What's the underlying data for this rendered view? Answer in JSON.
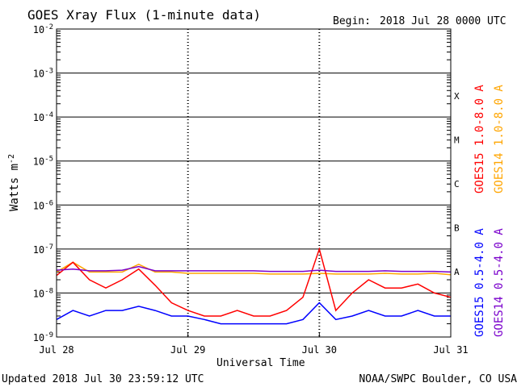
{
  "chart_data": {
    "type": "line",
    "title": "GOES Xray Flux (1-minute data)",
    "begin_label": "Begin:",
    "begin_value": "2018 Jul 28 0000 UTC",
    "ylabel_main": "Watts m",
    "ylabel_exp": "-2",
    "xlabel": "Universal Time",
    "x_ticks": [
      "Jul 28",
      "Jul 29",
      "Jul 30",
      "Jul 31"
    ],
    "y_ticks": [
      {
        "base": "10",
        "exp": "-2",
        "value": 0.01
      },
      {
        "base": "10",
        "exp": "-3",
        "value": 0.001
      },
      {
        "base": "10",
        "exp": "-4",
        "value": 0.0001
      },
      {
        "base": "10",
        "exp": "-5",
        "value": 1e-05
      },
      {
        "base": "10",
        "exp": "-6",
        "value": 1e-06
      },
      {
        "base": "10",
        "exp": "-7",
        "value": 1e-07
      },
      {
        "base": "10",
        "exp": "-8",
        "value": 1e-08
      },
      {
        "base": "10",
        "exp": "-9",
        "value": 1e-09
      }
    ],
    "ylim": [
      1e-09,
      0.01
    ],
    "y_scale": "log",
    "xlim": [
      "2018-07-28 00:00",
      "2018-07-31 00:00"
    ],
    "grid": true,
    "flare_classes": [
      "X",
      "M",
      "C",
      "B",
      "A"
    ],
    "legend_placement": "right, vertical",
    "legend": [
      {
        "label": "GOES15 1.0-8.0 A",
        "color": "#ff0000"
      },
      {
        "label": "GOES14 1.0-8.0 A",
        "color": "#ffa500"
      },
      {
        "label": "GOES15 0.5-4.0 A",
        "color": "#0000ff"
      },
      {
        "label": "GOES14 0.5-4.0 A",
        "color": "#7a00cc"
      }
    ],
    "series": [
      {
        "name": "GOES15 1.0-8.0 A",
        "color": "#ff0000",
        "x": [
          "2018-07-28 00:00",
          "2018-07-28 03:00",
          "2018-07-28 06:00",
          "2018-07-28 09:00",
          "2018-07-28 12:00",
          "2018-07-28 15:00",
          "2018-07-28 18:00",
          "2018-07-28 21:00",
          "2018-07-29 00:00",
          "2018-07-29 03:00",
          "2018-07-29 06:00",
          "2018-07-29 09:00",
          "2018-07-29 12:00",
          "2018-07-29 15:00",
          "2018-07-29 18:00",
          "2018-07-29 21:00",
          "2018-07-30 00:00",
          "2018-07-30 03:00",
          "2018-07-30 06:00",
          "2018-07-30 09:00",
          "2018-07-30 12:00",
          "2018-07-30 15:00",
          "2018-07-30 18:00",
          "2018-07-30 21:00",
          "2018-07-31 00:00"
        ],
        "values": [
          2.5e-08,
          5e-08,
          2e-08,
          1.3e-08,
          2e-08,
          3.5e-08,
          1.5e-08,
          6e-09,
          4e-09,
          3e-09,
          3e-09,
          4e-09,
          3e-09,
          3e-09,
          4e-09,
          8e-09,
          1e-07,
          4e-09,
          1e-08,
          2e-08,
          1.3e-08,
          1.3e-08,
          1.6e-08,
          1e-08,
          8e-09
        ]
      },
      {
        "name": "GOES14 1.0-8.0 A",
        "color": "#ffa500",
        "x": [
          "2018-07-28 00:00",
          "2018-07-28 03:00",
          "2018-07-28 06:00",
          "2018-07-28 09:00",
          "2018-07-28 12:00",
          "2018-07-28 15:00",
          "2018-07-28 18:00",
          "2018-07-28 21:00",
          "2018-07-29 00:00",
          "2018-07-29 03:00",
          "2018-07-29 06:00",
          "2018-07-29 09:00",
          "2018-07-29 12:00",
          "2018-07-29 15:00",
          "2018-07-29 18:00",
          "2018-07-29 21:00",
          "2018-07-30 00:00",
          "2018-07-30 03:00",
          "2018-07-30 06:00",
          "2018-07-30 09:00",
          "2018-07-30 12:00",
          "2018-07-30 15:00",
          "2018-07-30 18:00",
          "2018-07-30 21:00",
          "2018-07-31 00:00"
        ],
        "values": [
          3e-08,
          5e-08,
          3e-08,
          3e-08,
          3e-08,
          4.5e-08,
          3e-08,
          3e-08,
          2.8e-08,
          2.8e-08,
          2.8e-08,
          2.8e-08,
          2.8e-08,
          2.7e-08,
          2.7e-08,
          2.7e-08,
          2.8e-08,
          2.7e-08,
          2.7e-08,
          2.7e-08,
          2.8e-08,
          2.7e-08,
          2.7e-08,
          2.8e-08,
          2.6e-08
        ]
      },
      {
        "name": "GOES15 0.5-4.0 A",
        "color": "#0000ff",
        "x": [
          "2018-07-28 00:00",
          "2018-07-28 03:00",
          "2018-07-28 06:00",
          "2018-07-28 09:00",
          "2018-07-28 12:00",
          "2018-07-28 15:00",
          "2018-07-28 18:00",
          "2018-07-28 21:00",
          "2018-07-29 00:00",
          "2018-07-29 03:00",
          "2018-07-29 06:00",
          "2018-07-29 09:00",
          "2018-07-29 12:00",
          "2018-07-29 15:00",
          "2018-07-29 18:00",
          "2018-07-29 21:00",
          "2018-07-30 00:00",
          "2018-07-30 03:00",
          "2018-07-30 06:00",
          "2018-07-30 09:00",
          "2018-07-30 12:00",
          "2018-07-30 15:00",
          "2018-07-30 18:00",
          "2018-07-30 21:00",
          "2018-07-31 00:00"
        ],
        "values": [
          2.5e-09,
          4e-09,
          3e-09,
          4e-09,
          4e-09,
          5e-09,
          4e-09,
          3e-09,
          3e-09,
          2.5e-09,
          2e-09,
          2e-09,
          2e-09,
          2e-09,
          2e-09,
          2.5e-09,
          6e-09,
          2.5e-09,
          3e-09,
          4e-09,
          3e-09,
          3e-09,
          4e-09,
          3e-09,
          3e-09
        ]
      },
      {
        "name": "GOES14 0.5-4.0 A",
        "color": "#7a00cc",
        "x": [
          "2018-07-28 00:00",
          "2018-07-28 03:00",
          "2018-07-28 06:00",
          "2018-07-28 09:00",
          "2018-07-28 12:00",
          "2018-07-28 15:00",
          "2018-07-28 18:00",
          "2018-07-28 21:00",
          "2018-07-29 00:00",
          "2018-07-29 03:00",
          "2018-07-29 06:00",
          "2018-07-29 09:00",
          "2018-07-29 12:00",
          "2018-07-29 15:00",
          "2018-07-29 18:00",
          "2018-07-29 21:00",
          "2018-07-30 00:00",
          "2018-07-30 03:00",
          "2018-07-30 06:00",
          "2018-07-30 09:00",
          "2018-07-30 12:00",
          "2018-07-30 15:00",
          "2018-07-30 18:00",
          "2018-07-30 21:00",
          "2018-07-31 00:00"
        ],
        "values": [
          3.3e-08,
          3.5e-08,
          3.2e-08,
          3.2e-08,
          3.3e-08,
          4e-08,
          3.2e-08,
          3.2e-08,
          3.2e-08,
          3.2e-08,
          3.2e-08,
          3.2e-08,
          3.2e-08,
          3.1e-08,
          3.1e-08,
          3.1e-08,
          3.3e-08,
          3.1e-08,
          3.1e-08,
          3.1e-08,
          3.2e-08,
          3.1e-08,
          3.1e-08,
          3.1e-08,
          3e-08
        ]
      }
    ]
  },
  "footer": {
    "updated": "Updated 2018 Jul 30 23:59:12 UTC",
    "credit": "NOAA/SWPC Boulder, CO USA"
  }
}
